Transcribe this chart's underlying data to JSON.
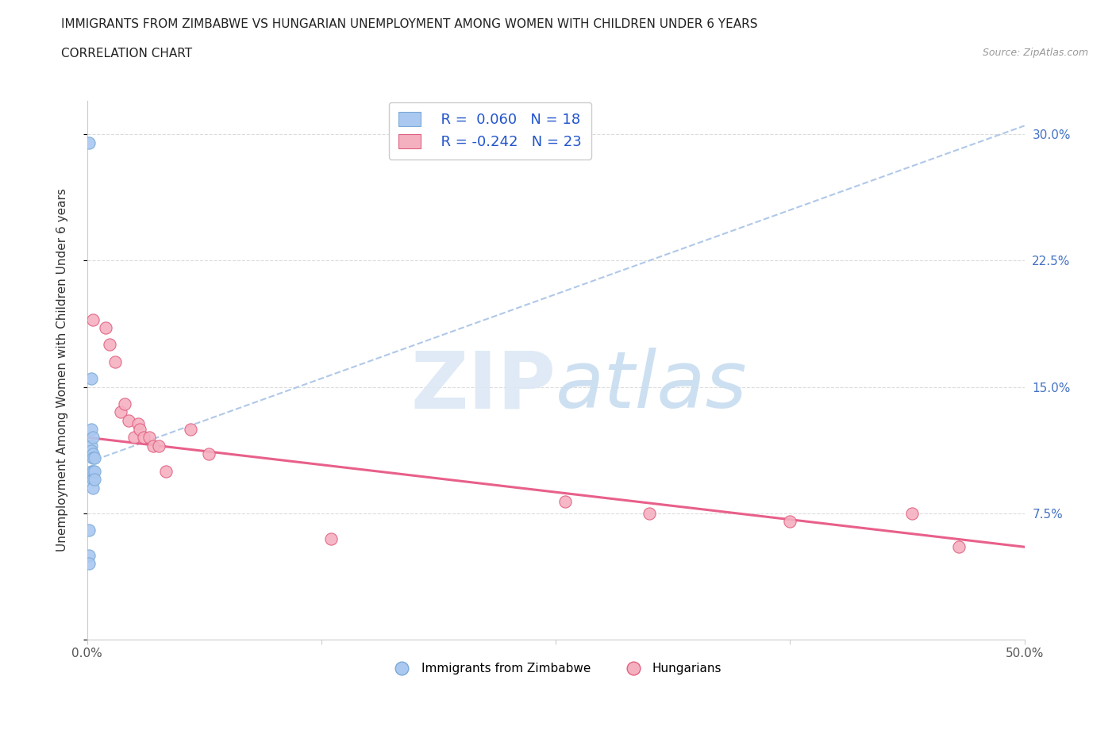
{
  "title_line1": "IMMIGRANTS FROM ZIMBABWE VS HUNGARIAN UNEMPLOYMENT AMONG WOMEN WITH CHILDREN UNDER 6 YEARS",
  "title_line2": "CORRELATION CHART",
  "source": "Source: ZipAtlas.com",
  "ylabel": "Unemployment Among Women with Children Under 6 years",
  "xlim": [
    0.0,
    0.5
  ],
  "ylim": [
    0.0,
    0.32
  ],
  "blue_scatter_x": [
    0.001,
    0.001,
    0.001,
    0.001,
    0.002,
    0.002,
    0.002,
    0.002,
    0.002,
    0.003,
    0.003,
    0.003,
    0.003,
    0.003,
    0.003,
    0.004,
    0.004,
    0.004
  ],
  "blue_scatter_y": [
    0.295,
    0.065,
    0.05,
    0.045,
    0.155,
    0.125,
    0.115,
    0.112,
    0.1,
    0.12,
    0.11,
    0.108,
    0.1,
    0.095,
    0.09,
    0.108,
    0.1,
    0.095
  ],
  "pink_scatter_x": [
    0.003,
    0.01,
    0.012,
    0.015,
    0.018,
    0.02,
    0.022,
    0.025,
    0.027,
    0.028,
    0.03,
    0.033,
    0.035,
    0.038,
    0.042,
    0.055,
    0.065,
    0.13,
    0.255,
    0.3,
    0.375,
    0.44,
    0.465
  ],
  "pink_scatter_y": [
    0.19,
    0.185,
    0.175,
    0.165,
    0.135,
    0.14,
    0.13,
    0.12,
    0.128,
    0.125,
    0.12,
    0.12,
    0.115,
    0.115,
    0.1,
    0.125,
    0.11,
    0.06,
    0.082,
    0.075,
    0.07,
    0.075,
    0.055
  ],
  "blue_line_x": [
    0.0,
    0.5
  ],
  "blue_line_y": [
    0.105,
    0.305
  ],
  "pink_line_x": [
    0.0,
    0.5
  ],
  "pink_line_y": [
    0.12,
    0.055
  ],
  "blue_scatter_color": "#aac8f0",
  "blue_scatter_edge": "#7aaad8",
  "pink_scatter_color": "#f5b0c0",
  "pink_scatter_edge": "#e06080",
  "blue_line_color": "#b0c8e8",
  "pink_line_color": "#e8608a",
  "r_blue": "R =  0.060",
  "n_blue": "N = 18",
  "r_pink": "R = -0.242",
  "n_pink": "N = 23",
  "label_blue": "Immigrants from Zimbabwe",
  "label_pink": "Hungarians",
  "watermark_zip": "ZIP",
  "watermark_atlas": "atlas",
  "bg_color": "#ffffff",
  "grid_color": "#d8d8d8",
  "right_tick_color": "#4472c4",
  "title_color": "#222222",
  "source_color": "#999999"
}
